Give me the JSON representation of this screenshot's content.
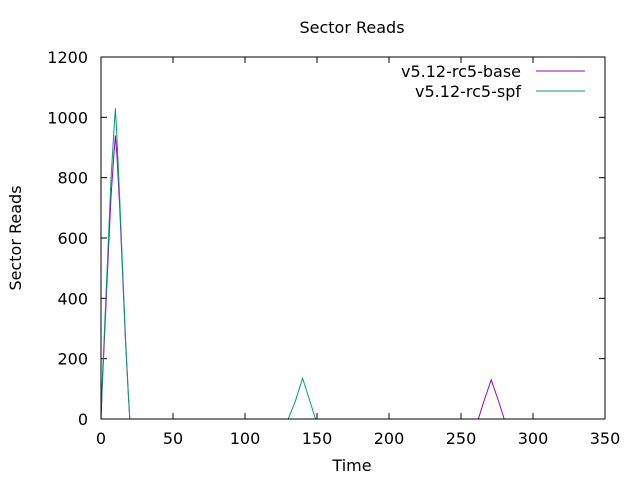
{
  "chart_data": {
    "type": "line",
    "title": "Sector Reads",
    "xlabel": "Time",
    "ylabel": "Sector Reads",
    "xlim": [
      0,
      350
    ],
    "ylim": [
      0,
      1200
    ],
    "xticks": [
      0,
      50,
      100,
      150,
      200,
      250,
      300,
      350
    ],
    "yticks": [
      0,
      200,
      400,
      600,
      800,
      1000,
      1200
    ],
    "grid": false,
    "legend_position": "top-right",
    "series": [
      {
        "name": "v5.12-rc5-base",
        "color": "#9400d3",
        "points": [
          [
            0,
            0
          ],
          [
            1,
            120
          ],
          [
            3,
            330
          ],
          [
            5,
            540
          ],
          [
            7,
            740
          ],
          [
            9,
            880
          ],
          [
            10,
            940
          ],
          [
            11,
            880
          ],
          [
            13,
            700
          ],
          [
            15,
            480
          ],
          [
            17,
            260
          ],
          [
            19,
            80
          ],
          [
            20,
            0
          ],
          [
            262,
            0
          ],
          [
            266,
            60
          ],
          [
            271,
            130
          ],
          [
            276,
            60
          ],
          [
            280,
            0
          ]
        ]
      },
      {
        "name": "v5.12-rc5-spf",
        "color": "#009e73",
        "points": [
          [
            0,
            0
          ],
          [
            1,
            140
          ],
          [
            3,
            360
          ],
          [
            5,
            580
          ],
          [
            7,
            800
          ],
          [
            9,
            960
          ],
          [
            10,
            1030
          ],
          [
            11,
            940
          ],
          [
            13,
            730
          ],
          [
            15,
            500
          ],
          [
            17,
            270
          ],
          [
            19,
            80
          ],
          [
            20,
            0
          ],
          [
            130,
            0
          ],
          [
            135,
            60
          ],
          [
            140,
            135
          ],
          [
            145,
            60
          ],
          [
            149,
            0
          ]
        ]
      }
    ]
  }
}
